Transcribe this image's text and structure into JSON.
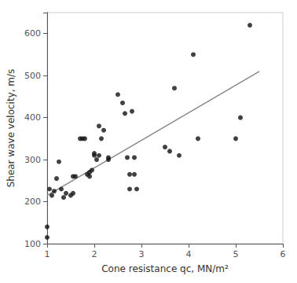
{
  "chart_data": {
    "type": "scatter",
    "xlabel": "Cone resistance qc, MN/m²",
    "ylabel": "Shear wave velocity, m/s",
    "series": [
      {
        "type": "scatter",
        "color": "#111111",
        "x": [
          1.0,
          1.0,
          1.05,
          1.1,
          1.15,
          1.2,
          1.25,
          1.3,
          1.35,
          1.4,
          1.5,
          1.55,
          1.55,
          1.6,
          1.7,
          1.75,
          1.8,
          1.85,
          1.9,
          1.9,
          1.95,
          2.0,
          2.0,
          2.05,
          2.1,
          2.1,
          2.15,
          2.2,
          2.3,
          2.3,
          2.5,
          2.6,
          2.65,
          2.7,
          2.75,
          2.75,
          2.8,
          2.85,
          2.85,
          2.9,
          3.5,
          3.6,
          3.7,
          3.8,
          4.1,
          4.2,
          5.0,
          5.1,
          5.3
        ],
        "values": [
          115,
          140,
          230,
          215,
          225,
          255,
          295,
          230,
          210,
          220,
          215,
          260,
          220,
          260,
          350,
          350,
          350,
          265,
          270,
          260,
          275,
          310,
          315,
          300,
          310,
          380,
          350,
          370,
          300,
          305,
          455,
          435,
          410,
          305,
          265,
          230,
          415,
          305,
          265,
          230,
          330,
          320,
          470,
          310,
          550,
          350,
          350,
          400,
          620
        ]
      },
      {
        "type": "line",
        "color": "#888888",
        "x": [
          1.0,
          5.5
        ],
        "values": [
          215,
          510
        ]
      }
    ],
    "xlim": [
      1.0,
      6.0
    ],
    "ylim": [
      100,
      650
    ],
    "xticks": [
      1,
      2,
      3,
      4,
      5,
      6
    ],
    "yticks": [
      100,
      200,
      300,
      400,
      500,
      600
    ],
    "grid": false
  }
}
